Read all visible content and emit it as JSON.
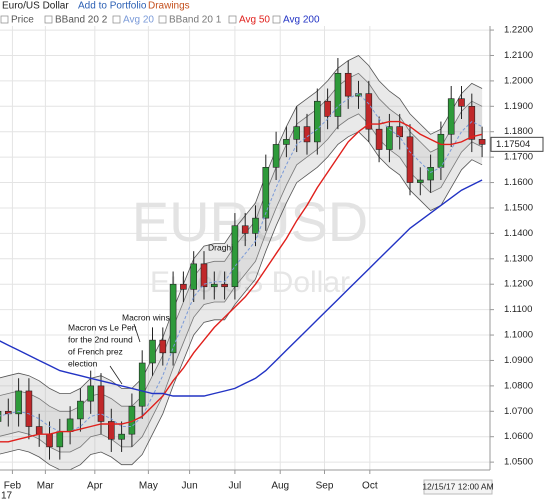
{
  "chart_data": {
    "type": "candlestick",
    "title": "Euro/US Dollar",
    "links": [
      "Add to Portfolio",
      "Drawings"
    ],
    "watermark": "EURUSD",
    "watermark_subtitle": "Euro/US Dollar",
    "year_label": "17",
    "date_label": "12/15/17 12:00 AM",
    "price_label": "1.17504",
    "annotations": [
      {
        "lines": [
          "Macron vs Le Pen",
          "for the 2nd round",
          "of French prez",
          "election"
        ]
      },
      {
        "lines": [
          "Macron wins"
        ]
      },
      {
        "lines": [
          "Draghi"
        ]
      }
    ],
    "categories": [
      null,
      null,
      null,
      null,
      null,
      null,
      null,
      null,
      null,
      null,
      null,
      null,
      null,
      null,
      null,
      null,
      null,
      null,
      null,
      null,
      null,
      null,
      null,
      null,
      null,
      null,
      null,
      null,
      null,
      null,
      null,
      null,
      null,
      null,
      null,
      null,
      null,
      null,
      null,
      null,
      null,
      null,
      null,
      null,
      null,
      null,
      null,
      null
    ],
    "price": {
      "name": "Price",
      "up_color": "#2e9a3a",
      "down_color": "#c0282a",
      "open": [
        1.066,
        1.07,
        1.069,
        1.078,
        1.064,
        1.061,
        1.056,
        1.062,
        1.067,
        1.074,
        1.08,
        1.066,
        1.059,
        1.061,
        1.072,
        1.089,
        1.098,
        1.093,
        1.12,
        1.118,
        1.128,
        1.119,
        1.12,
        1.119,
        1.143,
        1.14,
        1.146,
        1.166,
        1.175,
        1.177,
        1.182,
        1.176,
        1.192,
        1.186,
        1.203,
        1.194,
        1.195,
        1.181,
        1.173,
        1.182,
        1.178,
        1.16,
        1.161,
        1.166,
        1.179,
        1.193,
        1.19,
        1.177
      ],
      "high": [
        1.075,
        1.075,
        1.083,
        1.083,
        1.069,
        1.066,
        1.067,
        1.072,
        1.079,
        1.086,
        1.085,
        1.071,
        1.066,
        1.077,
        1.094,
        1.103,
        1.103,
        1.125,
        1.125,
        1.133,
        1.133,
        1.125,
        1.125,
        1.148,
        1.148,
        1.151,
        1.171,
        1.18,
        1.182,
        1.19,
        1.187,
        1.197,
        1.197,
        1.209,
        1.208,
        1.2,
        1.2,
        1.186,
        1.187,
        1.187,
        1.183,
        1.166,
        1.171,
        1.184,
        1.198,
        1.198,
        1.195,
        1.182
      ],
      "low": [
        1.061,
        1.064,
        1.064,
        1.059,
        1.056,
        1.051,
        1.051,
        1.057,
        1.062,
        1.069,
        1.061,
        1.054,
        1.054,
        1.056,
        1.067,
        1.084,
        1.088,
        1.088,
        1.113,
        1.113,
        1.114,
        1.114,
        1.114,
        1.114,
        1.135,
        1.135,
        1.141,
        1.161,
        1.17,
        1.172,
        1.171,
        1.171,
        1.181,
        1.181,
        1.189,
        1.189,
        1.176,
        1.168,
        1.168,
        1.173,
        1.155,
        1.155,
        1.156,
        1.161,
        1.174,
        1.185,
        1.172,
        1.17
      ],
      "close": [
        1.07,
        1.069,
        1.078,
        1.064,
        1.061,
        1.056,
        1.062,
        1.067,
        1.074,
        1.08,
        1.066,
        1.059,
        1.061,
        1.072,
        1.089,
        1.098,
        1.093,
        1.12,
        1.118,
        1.128,
        1.119,
        1.12,
        1.119,
        1.143,
        1.14,
        1.146,
        1.166,
        1.175,
        1.177,
        1.182,
        1.176,
        1.192,
        1.186,
        1.203,
        1.194,
        1.195,
        1.181,
        1.173,
        1.182,
        1.178,
        1.16,
        1.161,
        1.166,
        1.179,
        1.193,
        1.19,
        1.177,
        1.17504
      ]
    },
    "series": [
      {
        "name": "BBand 20 2",
        "color": "#555555",
        "upper": [
          1.083,
          1.084,
          1.085,
          1.084,
          1.082,
          1.079,
          1.077,
          1.077,
          1.079,
          1.083,
          1.084,
          1.082,
          1.079,
          1.079,
          1.083,
          1.091,
          1.099,
          1.11,
          1.12,
          1.13,
          1.135,
          1.136,
          1.136,
          1.142,
          1.147,
          1.152,
          1.163,
          1.173,
          1.182,
          1.19,
          1.193,
          1.196,
          1.2,
          1.205,
          1.208,
          1.21,
          1.206,
          1.2,
          1.196,
          1.193,
          1.187,
          1.183,
          1.179,
          1.181,
          1.188,
          1.195,
          1.199,
          1.197
        ],
        "lower": [
          1.053,
          1.054,
          1.055,
          1.054,
          1.052,
          1.049,
          1.047,
          1.047,
          1.049,
          1.053,
          1.054,
          1.052,
          1.049,
          1.049,
          1.053,
          1.061,
          1.069,
          1.08,
          1.09,
          1.1,
          1.105,
          1.106,
          1.106,
          1.112,
          1.117,
          1.122,
          1.133,
          1.143,
          1.152,
          1.16,
          1.163,
          1.166,
          1.17,
          1.175,
          1.178,
          1.18,
          1.176,
          1.17,
          1.166,
          1.163,
          1.157,
          1.153,
          1.149,
          1.151,
          1.158,
          1.165,
          1.169,
          1.167
        ]
      },
      {
        "name": "Avg 20",
        "color": "#7a9ad8",
        "values": [
          1.068,
          1.069,
          1.07,
          1.069,
          1.067,
          1.064,
          1.062,
          1.062,
          1.064,
          1.068,
          1.069,
          1.067,
          1.064,
          1.064,
          1.068,
          1.076,
          1.084,
          1.095,
          1.105,
          1.115,
          1.12,
          1.121,
          1.121,
          1.127,
          1.132,
          1.137,
          1.148,
          1.158,
          1.167,
          1.175,
          1.178,
          1.181,
          1.185,
          1.19,
          1.193,
          1.195,
          1.191,
          1.185,
          1.181,
          1.178,
          1.172,
          1.168,
          1.164,
          1.166,
          1.173,
          1.18,
          1.184,
          1.182
        ]
      },
      {
        "name": "BBand 20 1",
        "color": "#777777",
        "upper": [
          1.076,
          1.077,
          1.078,
          1.077,
          1.075,
          1.072,
          1.07,
          1.07,
          1.072,
          1.076,
          1.077,
          1.075,
          1.072,
          1.072,
          1.076,
          1.084,
          1.092,
          1.103,
          1.113,
          1.123,
          1.128,
          1.129,
          1.129,
          1.135,
          1.14,
          1.145,
          1.156,
          1.166,
          1.175,
          1.183,
          1.186,
          1.189,
          1.193,
          1.198,
          1.201,
          1.203,
          1.199,
          1.193,
          1.189,
          1.186,
          1.18,
          1.176,
          1.172,
          1.174,
          1.181,
          1.188,
          1.192,
          1.19
        ],
        "lower": [
          1.06,
          1.061,
          1.062,
          1.061,
          1.059,
          1.056,
          1.054,
          1.054,
          1.056,
          1.06,
          1.061,
          1.059,
          1.056,
          1.056,
          1.06,
          1.068,
          1.076,
          1.087,
          1.097,
          1.107,
          1.112,
          1.113,
          1.113,
          1.119,
          1.124,
          1.129,
          1.14,
          1.15,
          1.159,
          1.167,
          1.17,
          1.173,
          1.177,
          1.182,
          1.185,
          1.187,
          1.183,
          1.177,
          1.173,
          1.17,
          1.164,
          1.16,
          1.156,
          1.158,
          1.165,
          1.172,
          1.176,
          1.174
        ]
      },
      {
        "name": "Avg 50",
        "color": "#e0201c",
        "values": [
          1.058,
          1.058,
          1.059,
          1.06,
          1.061,
          1.061,
          1.062,
          1.062,
          1.063,
          1.064,
          1.065,
          1.065,
          1.065,
          1.066,
          1.068,
          1.072,
          1.076,
          1.082,
          1.087,
          1.093,
          1.098,
          1.103,
          1.107,
          1.111,
          1.115,
          1.12,
          1.126,
          1.132,
          1.138,
          1.145,
          1.151,
          1.158,
          1.164,
          1.17,
          1.176,
          1.18,
          1.183,
          1.183,
          1.184,
          1.184,
          1.182,
          1.179,
          1.177,
          1.175,
          1.175,
          1.176,
          1.178,
          1.179
        ]
      },
      {
        "name": "Avg 200",
        "color": "#2233c4",
        "values": [
          1.098,
          1.096,
          1.094,
          1.092,
          1.09,
          1.088,
          1.086,
          1.085,
          1.084,
          1.083,
          1.082,
          1.081,
          1.08,
          1.079,
          1.078,
          1.077,
          1.077,
          1.076,
          1.076,
          1.076,
          1.076,
          1.077,
          1.078,
          1.079,
          1.081,
          1.083,
          1.086,
          1.09,
          1.094,
          1.098,
          1.102,
          1.106,
          1.11,
          1.114,
          1.118,
          1.122,
          1.126,
          1.13,
          1.134,
          1.138,
          1.142,
          1.145,
          1.148,
          1.151,
          1.154,
          1.157,
          1.159,
          1.161
        ]
      }
    ],
    "ylim": [
      1.0469,
      1.2216
    ],
    "yticks": [
      {
        "value": 1.05,
        "label": "1.0500"
      },
      {
        "value": 1.06,
        "label": "1.0600"
      },
      {
        "value": 1.07,
        "label": "1.0700"
      },
      {
        "value": 1.08,
        "label": "1.0800"
      },
      {
        "value": 1.09,
        "label": "1.0900"
      },
      {
        "value": 1.1,
        "label": "1.1000"
      },
      {
        "value": 1.11,
        "label": "1.1100"
      },
      {
        "value": 1.12,
        "label": "1.1200"
      },
      {
        "value": 1.13,
        "label": "1.1300"
      },
      {
        "value": 1.14,
        "label": "1.1400"
      },
      {
        "value": 1.15,
        "label": "1.1500"
      },
      {
        "value": 1.16,
        "label": "1.1600"
      },
      {
        "value": 1.17,
        "label": "1.1700"
      },
      {
        "value": 1.18,
        "label": "1.1800"
      },
      {
        "value": 1.19,
        "label": "1.1900"
      },
      {
        "value": 1.2,
        "label": "1.2000"
      },
      {
        "value": 1.21,
        "label": "1.2100"
      },
      {
        "value": 1.22,
        "label": "1.2200"
      }
    ],
    "xticks": [
      {
        "value": 1.4,
        "label": "Feb"
      },
      {
        "value": 4.6,
        "label": "Mar"
      },
      {
        "value": 9.4,
        "label": "Apr"
      },
      {
        "value": 14.6,
        "label": "May"
      },
      {
        "value": 18.6,
        "label": "Jun"
      },
      {
        "value": 23.0,
        "label": "Jul"
      },
      {
        "value": 27.4,
        "label": "Aug"
      },
      {
        "value": 31.7,
        "label": "Sep"
      },
      {
        "value": 36.1,
        "label": "Oct"
      }
    ],
    "grid": true
  }
}
